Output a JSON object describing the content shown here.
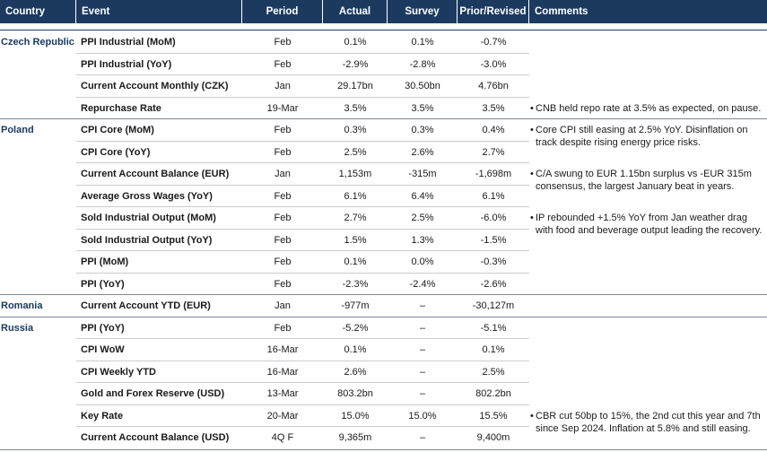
{
  "header": [
    "Country",
    "Event",
    "Period",
    "Actual",
    "Survey",
    "Prior/Revised",
    "Comments"
  ],
  "groups": [
    {
      "country": "Czech Republic",
      "rows": [
        {
          "event": "PPI Industrial (MoM)",
          "period": "Feb",
          "actual": "0.1%",
          "survey": "0.1%",
          "prior": "-0.7%"
        },
        {
          "event": "PPI Industrial (YoY)",
          "period": "Feb",
          "actual": "-2.9%",
          "survey": "-2.8%",
          "prior": "-3.0%"
        },
        {
          "event": "Current Account Monthly (CZK)",
          "period": "Jan",
          "actual": "29.17bn",
          "survey": "30.50bn",
          "prior": "4.76bn"
        },
        {
          "event": "Repurchase Rate",
          "period": "19-Mar",
          "actual": "3.5%",
          "survey": "3.5%",
          "prior": "3.5%",
          "comment": "CNB held repo rate at 3.5% as expected, on pause."
        }
      ]
    },
    {
      "country": "Poland",
      "rows": [
        {
          "event": "CPI Core (MoM)",
          "period": "Feb",
          "actual": "0.3%",
          "survey": "0.3%",
          "prior": "0.4%",
          "comment": "Core CPI still easing at 2.5% YoY. Disinflation on track despite rising energy price risks."
        },
        {
          "event": "CPI Core (YoY)",
          "period": "Feb",
          "actual": "2.5%",
          "survey": "2.6%",
          "prior": "2.7%"
        },
        {
          "event": "Current Account Balance (EUR)",
          "period": "Jan",
          "actual": "1,153m",
          "survey": "-315m",
          "prior": "-1,698m",
          "comment": "C/A swung to EUR 1.15bn surplus vs -EUR 315m consensus, the largest January beat in years."
        },
        {
          "event": "Average Gross Wages (YoY)",
          "period": "Feb",
          "actual": "6.1%",
          "survey": "6.4%",
          "prior": "6.1%"
        },
        {
          "event": "Sold Industrial Output (MoM)",
          "period": "Feb",
          "actual": "2.7%",
          "survey": "2.5%",
          "prior": "-6.0%",
          "comment": "IP rebounded +1.5% YoY from Jan weather drag with food and beverage output leading the recovery."
        },
        {
          "event": "Sold Industrial Output (YoY)",
          "period": "Feb",
          "actual": "1.5%",
          "survey": "1.3%",
          "prior": "-1.5%"
        },
        {
          "event": "PPI (MoM)",
          "period": "Feb",
          "actual": "0.1%",
          "survey": "0.0%",
          "prior": "-0.3%"
        },
        {
          "event": "PPI (YoY)",
          "period": "Feb",
          "actual": "-2.3%",
          "survey": "-2.4%",
          "prior": "-2.6%"
        }
      ]
    },
    {
      "country": "Romania",
      "rows": [
        {
          "event": "Current Account YTD (EUR)",
          "period": "Jan",
          "actual": "-977m",
          "survey": "–",
          "prior": "-30,127m"
        }
      ]
    },
    {
      "country": "Russia",
      "rows": [
        {
          "event": "PPI (YoY)",
          "period": "Feb",
          "actual": "-5.2%",
          "survey": "–",
          "prior": "-5.1%"
        },
        {
          "event": "CPI WoW",
          "period": "16-Mar",
          "actual": "0.1%",
          "survey": "–",
          "prior": "0.1%"
        },
        {
          "event": "CPI Weekly YTD",
          "period": "16-Mar",
          "actual": "2.6%",
          "survey": "–",
          "prior": "2.5%"
        },
        {
          "event": "Gold and Forex Reserve (USD)",
          "period": "13-Mar",
          "actual": "803.2bn",
          "survey": "–",
          "prior": "802.2bn"
        },
        {
          "event": "Key Rate",
          "period": "20-Mar",
          "actual": "15.0%",
          "survey": "15.0%",
          "prior": "15.5%",
          "comment": "CBR cut 50bp to 15%, the 2nd cut this year and 7th since Sep 2024. Inflation at 5.8% and still easing."
        },
        {
          "event": "Current Account Balance (USD)",
          "period": "4Q F",
          "actual": "9,365m",
          "survey": "–",
          "prior": "9,400m"
        }
      ]
    }
  ]
}
